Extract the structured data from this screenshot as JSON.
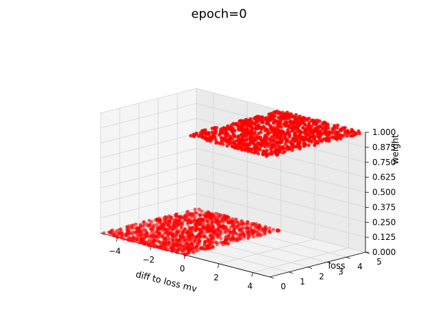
{
  "chart_data": {
    "type": "scatter",
    "projection": "3d",
    "title": "epoch=0",
    "xlabel": "diff to loss mv",
    "ylabel": "loss",
    "zlabel": "weight",
    "xlim": [
      -5,
      5
    ],
    "ylim": [
      0,
      5
    ],
    "zlim": [
      0,
      1
    ],
    "xticks": [
      "−4",
      "−2",
      "0",
      "2",
      "4"
    ],
    "yticks": [
      "0",
      "1",
      "2",
      "3",
      "4",
      "5"
    ],
    "zticks": [
      "0.000",
      "0.125",
      "0.250",
      "0.375",
      "0.500",
      "0.625",
      "0.750",
      "0.875",
      "1.000"
    ],
    "grid": true,
    "marker_color": "#ff0000",
    "series": [
      {
        "description": "weight 1.0 plane for x in [0, 5]",
        "x_range": [
          0,
          5
        ],
        "y_range": [
          0,
          5
        ],
        "z": 1.0,
        "count": 900
      },
      {
        "description": "weight 0.0 plane for x in [-5, 0]",
        "x_range": [
          -5,
          0
        ],
        "y_range": [
          0,
          5
        ],
        "z": 0.0,
        "count": 1000
      },
      {
        "description": "single point near x=0",
        "points": [
          [
            0.0,
            4.2,
            0.05
          ]
        ]
      }
    ]
  }
}
